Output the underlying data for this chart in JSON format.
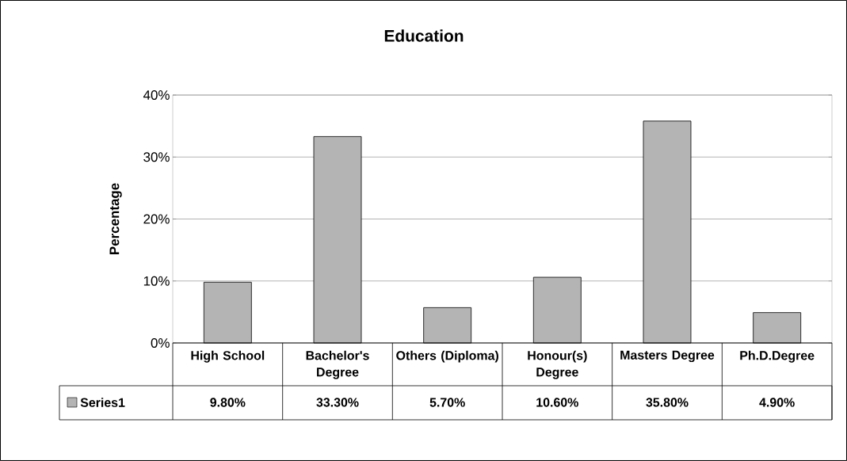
{
  "chart_data": {
    "type": "bar",
    "title": "Education",
    "ylabel": "Percentage",
    "categories": [
      "High School",
      "Bachelor's Degree",
      "Others (Diploma)",
      "Honour(s) Degree",
      "Masters Degree",
      "Ph.D.Degree"
    ],
    "series": [
      {
        "name": "Series1",
        "color": "#b4b4b4",
        "values": [
          9.8,
          33.3,
          5.7,
          10.6,
          35.8,
          4.9
        ],
        "value_labels": [
          "9.80%",
          "33.30%",
          "5.70%",
          "10.60%",
          "35.80%",
          "4.90%"
        ]
      }
    ],
    "ylim": [
      0,
      40
    ],
    "yticks": [
      {
        "value": 0,
        "label": "0%"
      },
      {
        "value": 10,
        "label": "10%"
      },
      {
        "value": 20,
        "label": "20%"
      },
      {
        "value": 30,
        "label": "30%"
      },
      {
        "value": 40,
        "label": "40%"
      }
    ],
    "grid": "y",
    "legend": "bottom left"
  }
}
